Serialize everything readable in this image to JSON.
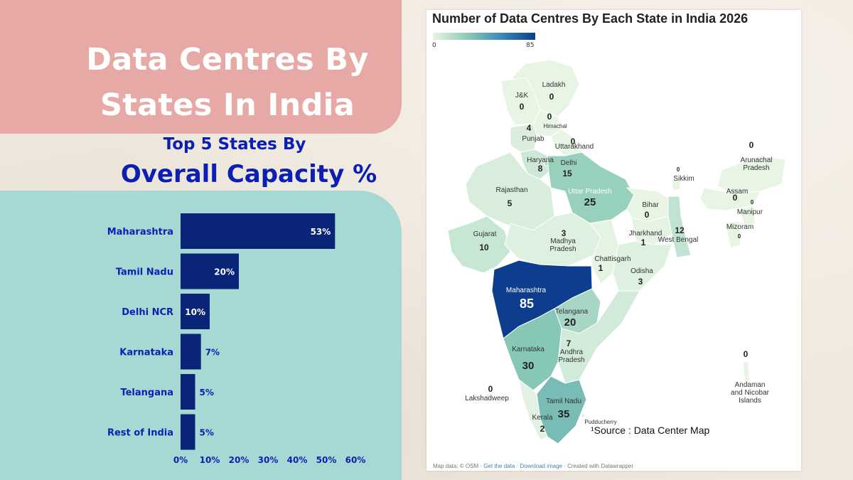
{
  "header": {
    "title_line1": "Data Centres By",
    "title_line2": "States In India",
    "subtitle_line1": "Top 5 States By",
    "subtitle_line2": "Overall Capacity %"
  },
  "colors": {
    "pink_panel": "#e6a9a5",
    "teal_panel": "#a7d9d4",
    "bar": "#0a2478",
    "bar_label": "#0b1fb3",
    "map_scale": [
      "#e8f4e4",
      "#8ccbb6",
      "#3a8ab8",
      "#0d3d8c"
    ]
  },
  "chart_data": [
    {
      "type": "bar",
      "orientation": "horizontal",
      "title": "",
      "categories": [
        "Maharashtra",
        "Tamil Nadu",
        "Delhi NCR",
        "Karnataka",
        "Telangana",
        "Rest of India"
      ],
      "values": [
        53,
        20,
        10,
        7,
        5,
        5
      ],
      "value_labels": [
        "53%",
        "20%",
        "10%",
        "7%",
        "5%",
        "5%"
      ],
      "xlim": [
        0,
        60
      ],
      "x_ticks": [
        "0%",
        "10%",
        "20%",
        "30%",
        "40%",
        "50%",
        "60%"
      ],
      "grid": false
    },
    {
      "type": "choropleth",
      "title": "Number of Data Centres By Each State in India 2026",
      "legend": {
        "min": "0",
        "max": "85"
      },
      "states": [
        {
          "name": "Ladakh",
          "value": "0"
        },
        {
          "name": "J&K",
          "value": "0"
        },
        {
          "name": "Himachal",
          "value": "0"
        },
        {
          "name": "Punjab",
          "value": "4"
        },
        {
          "name": "Uttarakhand",
          "value": "0"
        },
        {
          "name": "Haryana",
          "value": "8"
        },
        {
          "name": "Delhi",
          "value": "15"
        },
        {
          "name": "Rajasthan",
          "value": "5"
        },
        {
          "name": "Uttar Pradesh",
          "value": "25"
        },
        {
          "name": "Bihar",
          "value": "0"
        },
        {
          "name": "Sikkim",
          "value": "0"
        },
        {
          "name": "Arunachal Pradesh",
          "value": "0"
        },
        {
          "name": "Assam",
          "value": "0"
        },
        {
          "name": "Manipur",
          "value": "0"
        },
        {
          "name": "Mizoram",
          "value": "0"
        },
        {
          "name": "Gujarat",
          "value": "10"
        },
        {
          "name": "Madhya Pradesh",
          "value": "3"
        },
        {
          "name": "Jharkhand",
          "value": "1"
        },
        {
          "name": "West Bengal",
          "value": "12"
        },
        {
          "name": "Chattisgarh",
          "value": "1"
        },
        {
          "name": "Odisha",
          "value": "3"
        },
        {
          "name": "Maharashtra",
          "value": "85"
        },
        {
          "name": "Telangana",
          "value": "20"
        },
        {
          "name": "Andhra Pradesh",
          "value": "7"
        },
        {
          "name": "Karnataka",
          "value": "30"
        },
        {
          "name": "Lakshadweep",
          "value": "0"
        },
        {
          "name": "Tamil Nadu",
          "value": "35"
        },
        {
          "name": "Kerala",
          "value": "2"
        },
        {
          "name": "Pudducherry",
          "value": ""
        },
        {
          "name": "Andaman and Nicobar Islands",
          "value": "0"
        }
      ]
    }
  ],
  "map": {
    "source": "¹Source : Data Center Map",
    "footer": {
      "map_data": "Map data: © OSM",
      "get_data": "Get the data",
      "download": "Download image",
      "created": "Created with Datawrapper"
    }
  }
}
